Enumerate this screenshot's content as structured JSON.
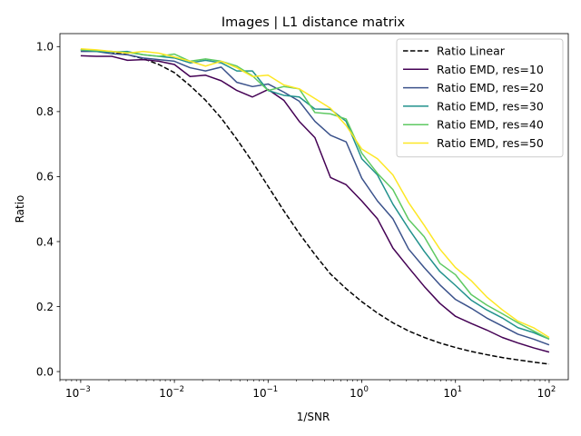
{
  "chart_data": {
    "type": "line",
    "title": "Images | L1 distance matrix",
    "xlabel": "1/SNR",
    "ylabel": "Ratio",
    "xscale": "log",
    "xlim": [
      0.0006,
      160
    ],
    "ylim": [
      -0.025,
      1.04
    ],
    "x_ticks": [
      {
        "value": 0.001,
        "base": "10",
        "exp": "−3"
      },
      {
        "value": 0.01,
        "base": "10",
        "exp": "−2"
      },
      {
        "value": 0.1,
        "base": "10",
        "exp": "−1"
      },
      {
        "value": 1,
        "base": "10",
        "exp": "0"
      },
      {
        "value": 10,
        "base": "10",
        "exp": "1"
      },
      {
        "value": 100,
        "base": "10",
        "exp": "2"
      }
    ],
    "y_ticks": [
      {
        "value": 0.0,
        "label": "0.0"
      },
      {
        "value": 0.2,
        "label": "0.2"
      },
      {
        "value": 0.4,
        "label": "0.4"
      },
      {
        "value": 0.6,
        "label": "0.6"
      },
      {
        "value": 0.8,
        "label": "0.8"
      },
      {
        "value": 1.0,
        "label": "1.0"
      }
    ],
    "grid": false,
    "legend_position": "top-right",
    "x": [
      0.001,
      0.00147,
      0.00215,
      0.00316,
      0.00464,
      0.00681,
      0.01,
      0.0147,
      0.0215,
      0.0316,
      0.0464,
      0.0681,
      0.1,
      0.147,
      0.215,
      0.316,
      0.464,
      0.681,
      1,
      1.47,
      2.15,
      3.16,
      4.64,
      6.81,
      10,
      14.7,
      21.5,
      31.6,
      46.4,
      68.1,
      100
    ],
    "series": [
      {
        "name": "Ratio Linear",
        "color": "#000000",
        "dash": true,
        "values": [
          0.99,
          0.988,
          0.983,
          0.975,
          0.963,
          0.945,
          0.92,
          0.88,
          0.835,
          0.78,
          0.715,
          0.645,
          0.57,
          0.495,
          0.425,
          0.36,
          0.3,
          0.255,
          0.215,
          0.18,
          0.15,
          0.125,
          0.105,
          0.088,
          0.074,
          0.062,
          0.052,
          0.043,
          0.036,
          0.029,
          0.023
        ]
      },
      {
        "name": "Ratio EMD, res=10",
        "color": "#440154",
        "dash": false,
        "values": [
          0.972,
          0.97,
          0.97,
          0.958,
          0.96,
          0.955,
          0.945,
          0.908,
          0.912,
          0.895,
          0.865,
          0.845,
          0.868,
          0.835,
          0.77,
          0.72,
          0.597,
          0.575,
          0.525,
          0.47,
          0.38,
          0.32,
          0.262,
          0.21,
          0.17,
          0.148,
          0.128,
          0.105,
          0.088,
          0.073,
          0.06
        ]
      },
      {
        "name": "Ratio EMD, res=20",
        "color": "#3b528b",
        "dash": false,
        "values": [
          0.985,
          0.985,
          0.978,
          0.975,
          0.965,
          0.96,
          0.955,
          0.935,
          0.925,
          0.937,
          0.89,
          0.877,
          0.885,
          0.86,
          0.832,
          0.77,
          0.727,
          0.707,
          0.595,
          0.525,
          0.47,
          0.377,
          0.32,
          0.267,
          0.222,
          0.195,
          0.165,
          0.14,
          0.115,
          0.1,
          0.082
        ]
      },
      {
        "name": "Ratio EMD, res=30",
        "color": "#21918c",
        "dash": false,
        "values": [
          0.99,
          0.985,
          0.983,
          0.985,
          0.975,
          0.97,
          0.965,
          0.95,
          0.958,
          0.95,
          0.925,
          0.925,
          0.865,
          0.85,
          0.845,
          0.808,
          0.807,
          0.77,
          0.655,
          0.605,
          0.515,
          0.44,
          0.37,
          0.308,
          0.265,
          0.22,
          0.19,
          0.165,
          0.135,
          0.12,
          0.1
        ]
      },
      {
        "name": "Ratio EMD, res=40",
        "color": "#5ec962",
        "dash": false,
        "values": [
          0.99,
          0.988,
          0.985,
          0.982,
          0.975,
          0.97,
          0.977,
          0.955,
          0.962,
          0.955,
          0.94,
          0.91,
          0.865,
          0.877,
          0.87,
          0.797,
          0.793,
          0.777,
          0.672,
          0.61,
          0.56,
          0.468,
          0.415,
          0.333,
          0.298,
          0.237,
          0.205,
          0.178,
          0.15,
          0.125,
          0.1
        ]
      },
      {
        "name": "Ratio EMD, res=50",
        "color": "#fde725",
        "dash": false,
        "values": [
          0.993,
          0.99,
          0.985,
          0.98,
          0.985,
          0.98,
          0.968,
          0.955,
          0.94,
          0.955,
          0.935,
          0.908,
          0.912,
          0.882,
          0.87,
          0.84,
          0.81,
          0.757,
          0.685,
          0.655,
          0.605,
          0.52,
          0.45,
          0.377,
          0.32,
          0.28,
          0.23,
          0.19,
          0.155,
          0.135,
          0.105
        ]
      }
    ]
  }
}
